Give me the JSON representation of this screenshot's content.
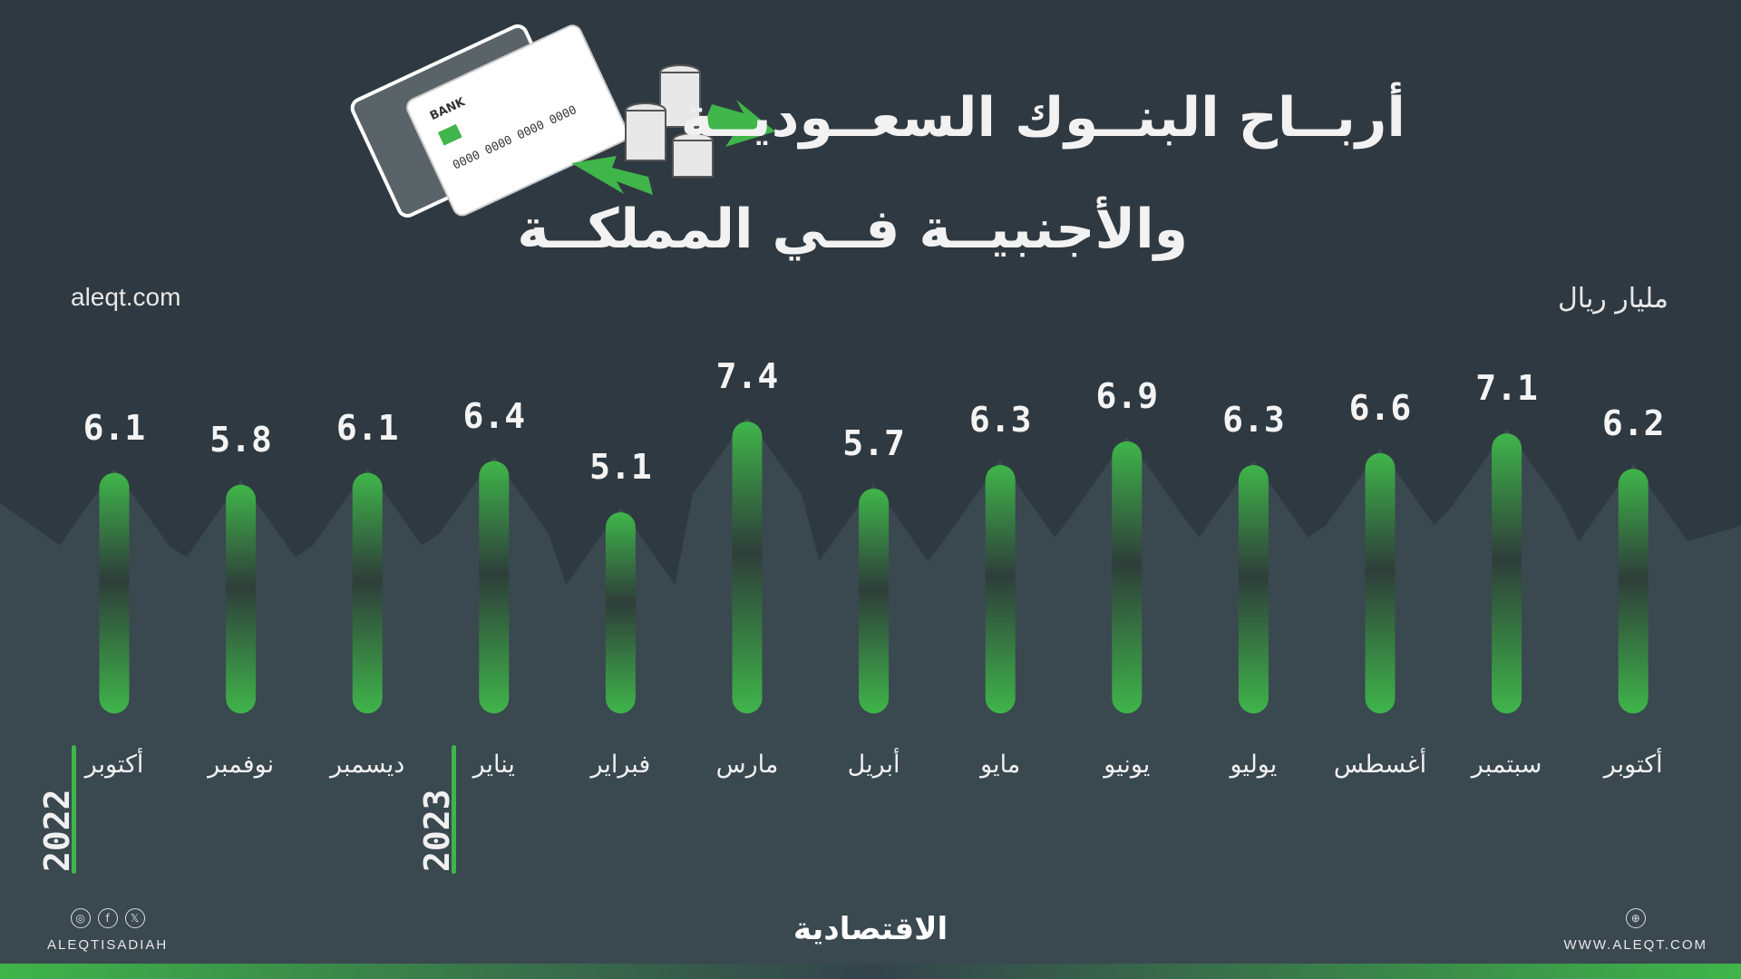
{
  "title_line1": "أربــاح البنــوك السعــوديــة",
  "title_line2": "والأجنبيــة فــي المملكــة",
  "unit": "مليار ريال",
  "site": "aleqt.com",
  "colors": {
    "background": "#2f3941",
    "bar": "#3fb54a",
    "text": "#ffffff"
  },
  "chart_data": {
    "type": "bar",
    "unit": "مليار ريال",
    "categories": [
      "أكتوبر",
      "نوفمبر",
      "ديسمبر",
      "يناير",
      "فبراير",
      "مارس",
      "أبريل",
      "مايو",
      "يونيو",
      "يوليو",
      "أغسطس",
      "سبتمبر",
      "أكتوبر"
    ],
    "values": [
      6.1,
      5.8,
      6.1,
      6.4,
      5.1,
      7.4,
      5.7,
      6.3,
      6.9,
      6.3,
      6.6,
      7.1,
      6.2
    ],
    "years": [
      {
        "label": "2022",
        "start_index": 0
      },
      {
        "label": "2023",
        "start_index": 3
      }
    ]
  },
  "footer": {
    "social_handle": "ALEQTISADIAH",
    "social_icons": [
      "instagram-icon",
      "facebook-icon",
      "x-icon"
    ],
    "brand": "الاقتصادية",
    "website": "WWW.ALEQT.COM",
    "web_icon": "globe-icon"
  }
}
